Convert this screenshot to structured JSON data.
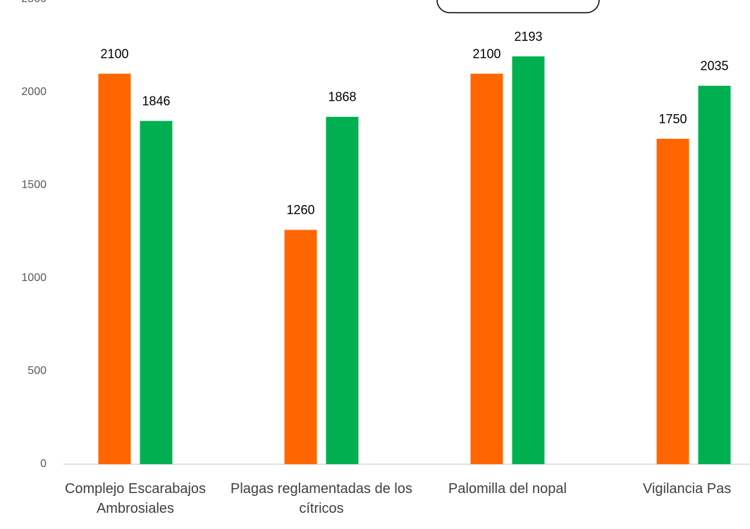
{
  "chart_data": {
    "type": "bar",
    "categories": [
      "Complejo Escarabajos Ambrosiales",
      "Plagas reglamentadas de los cítricos",
      "Palomilla del nopal",
      "Vigilancia Pas"
    ],
    "series": [
      {
        "color": "#ff6600",
        "values": [
          2100,
          1260,
          2100,
          1750
        ]
      },
      {
        "color": "#00b050",
        "values": [
          1846,
          1868,
          2193,
          2035
        ]
      }
    ],
    "ylim": [
      0,
      2500
    ],
    "yticks": [
      0,
      500,
      1000,
      1500,
      2000,
      2500
    ],
    "grid": false
  }
}
